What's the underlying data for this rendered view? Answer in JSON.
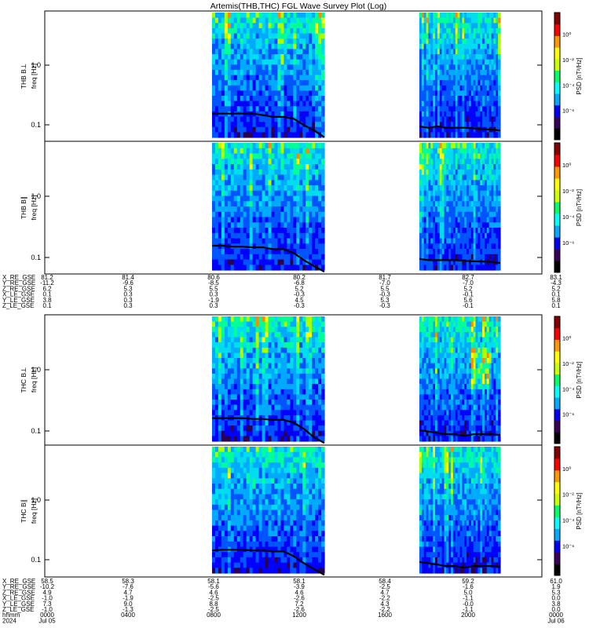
{
  "title": "Artemis(THB,THC) FGL Wave Survey Plot (Log)",
  "chart_data": {
    "type": "heatmap",
    "colorbar": {
      "label": "PSD [nT²/Hz]",
      "tick_labels": [
        "10⁰",
        "10⁻²",
        "10⁻⁴",
        "10⁻⁶"
      ],
      "colors": [
        "#000000",
        "#3a005a",
        "#0000ff",
        "#00aaff",
        "#00ffff",
        "#00ff66",
        "#ccff00",
        "#ffff00",
        "#ff9900",
        "#ff0000",
        "#880000"
      ]
    },
    "panels": [
      {
        "name": "THB B⊥",
        "ylabel": "freq [Hz]",
        "yticks": [
          "1.0",
          "0.1"
        ],
        "ylim": [
          0.06,
          8.0
        ],
        "scale": "log",
        "intervals_hhmm": [
          [
            "0800",
            "1330"
          ],
          [
            "1800",
            "2200"
          ]
        ],
        "trace": [
          [
            0.17,
            0.17,
            0.17,
            0.17,
            0.17,
            0.16,
            0.15,
            0.15,
            0.14,
            0.11,
            0.09,
            0.07
          ],
          [
            0.105,
            0.1,
            0.105,
            0.1,
            0.1,
            0.1,
            0.098,
            0.095,
            0.093,
            0.09
          ]
        ]
      },
      {
        "name": "THB B∥",
        "ylabel": "freq [Hz]",
        "yticks": [
          "1.0",
          "0.1"
        ],
        "ylim": [
          0.06,
          8.0
        ],
        "scale": "log",
        "intervals_hhmm": [
          [
            "0800",
            "1330"
          ],
          [
            "1800",
            "2200"
          ]
        ],
        "trace": [
          [
            0.17,
            0.17,
            0.165,
            0.165,
            0.16,
            0.16,
            0.15,
            0.15,
            0.13,
            0.1,
            0.08,
            0.065
          ],
          [
            0.105,
            0.1,
            0.1,
            0.1,
            0.1,
            0.098,
            0.096,
            0.095,
            0.094,
            0.09
          ]
        ]
      },
      {
        "name": "THC B⊥",
        "ylabel": "freq [Hz]",
        "yticks": [
          "1.0",
          "0.1"
        ],
        "ylim": [
          0.06,
          8.0
        ],
        "scale": "log",
        "intervals_hhmm": [
          [
            "0800",
            "1330"
          ],
          [
            "1800",
            "2200"
          ]
        ],
        "trace": [
          [
            0.165,
            0.165,
            0.165,
            0.165,
            0.16,
            0.16,
            0.155,
            0.155,
            0.14,
            0.11,
            0.08,
            0.065
          ],
          [
            0.105,
            0.1,
            0.095,
            0.09,
            0.09,
            0.085,
            0.09,
            0.09,
            0.09,
            0.088
          ]
        ]
      },
      {
        "name": "THC B∥",
        "ylabel": "freq [Hz]",
        "yticks": [
          "1.0",
          "0.1"
        ],
        "ylim": [
          0.06,
          8.0
        ],
        "scale": "log",
        "intervals_hhmm": [
          [
            "0800",
            "1330"
          ],
          [
            "1800",
            "2200"
          ]
        ],
        "trace": [
          [
            0.16,
            0.165,
            0.165,
            0.165,
            0.16,
            0.16,
            0.155,
            0.155,
            0.13,
            0.1,
            0.08,
            0.065
          ],
          [
            0.105,
            0.1,
            0.095,
            0.09,
            0.09,
            0.085,
            0.09,
            0.09,
            0.09,
            0.088
          ]
        ]
      }
    ],
    "annotation_blocks": [
      {
        "rows": [
          {
            "label": "X_RE_GSE",
            "values": [
              "81.2",
              "81.4",
              "80.6",
              "80.2",
              "81.7",
              "82.7",
              "83.1"
            ]
          },
          {
            "label": "Y_RE_GSE",
            "values": [
              "-11.2",
              "-9.6",
              "-8.5",
              "-6.8",
              "-7.0",
              "-7.0",
              "-4.3"
            ]
          },
          {
            "label": "Z_RE_GSE",
            "values": [
              "6.2",
              "5.3",
              "5.5",
              "5.2",
              "5.5",
              "5.2",
              "5.2"
            ]
          },
          {
            "label": "X_LE_GSE",
            "values": [
              "0.1",
              "0.3",
              "0.3",
              "-0.3",
              "-0.3",
              "-0.1",
              "0.1"
            ]
          },
          {
            "label": "Y_LE_GSE",
            "values": [
              "3.8",
              "0.3",
              "-1.9",
              "4.5",
              "5.3",
              "5.6",
              "5.8"
            ]
          },
          {
            "label": "Z_LE_GSE",
            "values": [
              "0.1",
              "0.3",
              "0.3",
              "-0.3",
              "-0.3",
              "-0.1",
              "0.1"
            ]
          }
        ]
      },
      {
        "rows": [
          {
            "label": "X_RE_GSE",
            "values": [
              "58.5",
              "58.3",
              "58.1",
              "58.1",
              "58.4",
              "59.2",
              "61.0"
            ]
          },
          {
            "label": "Y_RE_GSE",
            "values": [
              "-10.2",
              "-7.6",
              "-5.6",
              "-3.9",
              "-2.5",
              "-1.6",
              "1.9"
            ]
          },
          {
            "label": "Z_RE_GSE",
            "values": [
              "4.9",
              "4.7",
              "4.6",
              "4.6",
              "4.7",
              "5.0",
              "5.3"
            ]
          },
          {
            "label": "X_LE_GSE",
            "values": [
              "-1.0",
              "-1.9",
              "-2.5",
              "-2.6",
              "-2.2",
              "-1.1",
              "0.0"
            ]
          },
          {
            "label": "Y_LE_GSE",
            "values": [
              "7.3",
              "9.0",
              "8.8",
              "7.2",
              "4.3",
              "-0.0",
              "3.8"
            ]
          },
          {
            "label": "Z_LE_GSE",
            "values": [
              "-1.0",
              "-1.3",
              "-2.5",
              "-2.6",
              "-2.2",
              "-1.1",
              "0.0"
            ]
          },
          {
            "label": "hhmm",
            "values": [
              "0000",
              "0400",
              "0800",
              "1200",
              "1600",
              "2000",
              "0000"
            ]
          },
          {
            "label": "2024",
            "values": [
              "Jul 05",
              "",
              "",
              "",
              "",
              "",
              "Jul 06"
            ]
          }
        ]
      }
    ]
  }
}
